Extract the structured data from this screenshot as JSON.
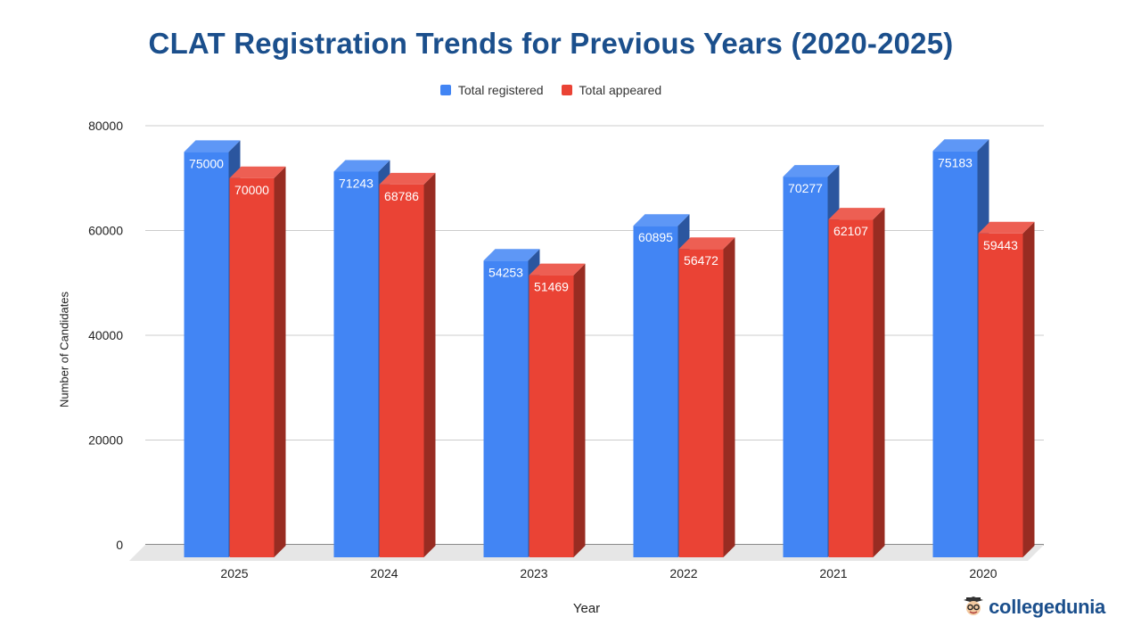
{
  "chart_data": {
    "type": "bar",
    "title": "CLAT Registration Trends for Previous Years (2020-2025)",
    "xlabel": "Year",
    "ylabel": "Number of Candidates",
    "ylim": [
      0,
      80000
    ],
    "yticks": [
      0,
      20000,
      40000,
      60000,
      80000
    ],
    "grid": true,
    "legend_position": "top-center",
    "categories": [
      "2025",
      "2024",
      "2023",
      "2022",
      "2021",
      "2020"
    ],
    "series": [
      {
        "name": "Total registered",
        "color": "#4285f4",
        "values": [
          75000,
          71243,
          54253,
          60895,
          70277,
          75183
        ]
      },
      {
        "name": "Total appeared",
        "color": "#ea4335",
        "values": [
          70000,
          68786,
          51469,
          56472,
          62107,
          59443
        ]
      }
    ]
  },
  "brand": {
    "text": "collegedunia",
    "icon": "student-mascot-icon"
  }
}
